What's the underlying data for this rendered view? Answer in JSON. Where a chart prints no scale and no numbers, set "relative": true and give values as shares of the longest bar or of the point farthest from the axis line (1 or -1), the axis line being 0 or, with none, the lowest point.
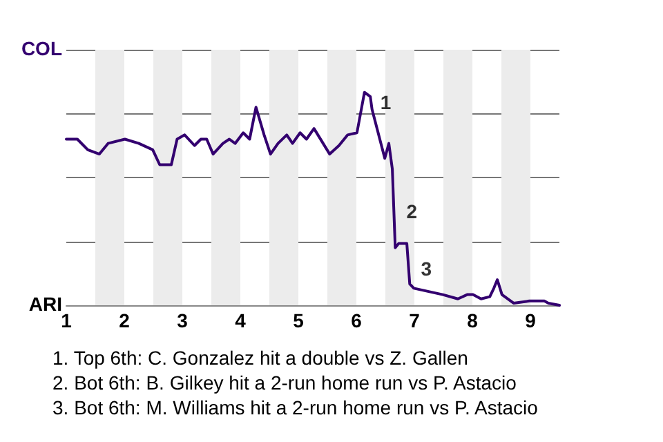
{
  "chart_data": {
    "type": "line",
    "relative": true,
    "x": [
      1,
      1.19,
      1.37,
      1.57,
      1.72,
      2.01,
      2.25,
      2.49,
      2.61,
      2.81,
      2.91,
      3.04,
      3.21,
      3.32,
      3.42,
      3.53,
      3.7,
      3.81,
      3.91,
      4.05,
      4.16,
      4.27,
      4.41,
      4.52,
      4.65,
      4.8,
      4.9,
      5.03,
      5.14,
      5.27,
      5.54,
      5.7,
      5.85,
      6.01,
      6.14,
      6.24,
      6.27,
      6.49,
      6.56,
      6.62,
      6.67,
      6.73,
      6.8,
      6.87,
      6.92,
      6.99,
      7.49,
      7.75,
      7.91,
      8.01,
      8.15,
      8.3,
      8.37,
      8.43,
      8.51,
      8.71,
      8.98,
      9.24,
      9.31,
      9.5
    ],
    "series": [
      {
        "color": "#33006f",
        "values": [
          0.78,
          0.78,
          0.73,
          0.71,
          0.76,
          0.78,
          0.76,
          0.73,
          0.66,
          0.66,
          0.78,
          0.8,
          0.75,
          0.78,
          0.78,
          0.71,
          0.76,
          0.78,
          0.76,
          0.81,
          0.78,
          0.93,
          0.8,
          0.71,
          0.76,
          0.8,
          0.76,
          0.81,
          0.78,
          0.83,
          0.71,
          0.75,
          0.8,
          0.81,
          1,
          0.98,
          0.92,
          0.69,
          0.76,
          0.64,
          0.27,
          0.29,
          0.29,
          0.29,
          0.1,
          0.08,
          0.05,
          0.03,
          0.05,
          0.05,
          0.03,
          0.04,
          0.08,
          0.12,
          0.05,
          0.01,
          0.02,
          0.02,
          0.01,
          0
        ]
      }
    ],
    "xlim": [
      1,
      9.5
    ],
    "xticks": [
      1,
      2,
      3,
      4,
      5,
      6,
      7,
      8,
      9
    ],
    "grid": "y",
    "marker": "none",
    "line_style": "solid",
    "bands": [
      {
        "axis": "x",
        "from": 1.5,
        "to": 2,
        "color": "#ececec"
      },
      {
        "axis": "x",
        "from": 2.5,
        "to": 3,
        "color": "#ececec"
      },
      {
        "axis": "x",
        "from": 3.5,
        "to": 4,
        "color": "#ececec"
      },
      {
        "axis": "x",
        "from": 4.5,
        "to": 5,
        "color": "#ececec"
      },
      {
        "axis": "x",
        "from": 5.5,
        "to": 6,
        "color": "#ececec"
      },
      {
        "axis": "x",
        "from": 6.5,
        "to": 7,
        "color": "#ececec"
      },
      {
        "axis": "x",
        "from": 7.5,
        "to": 8,
        "color": "#ececec"
      },
      {
        "axis": "x",
        "from": 8.5,
        "to": 9,
        "color": "#ececec"
      }
    ],
    "annotations": [
      "COL",
      "ARI",
      {
        "text": "1",
        "x": 6.27,
        "y": 0.92
      },
      {
        "text": "2",
        "x": 6.72,
        "y": 0.41
      },
      {
        "text": "3",
        "x": 6.97,
        "y": 0.14
      },
      "1. Top 6th: C. Gonzalez hit a double vs Z. Gallen",
      "2. Bot 6th: B. Gilkey hit a 2-run home run vs P. Astacio",
      "3. Bot 6th: M. Williams hit a 2-run home run vs P. Astacio"
    ]
  }
}
